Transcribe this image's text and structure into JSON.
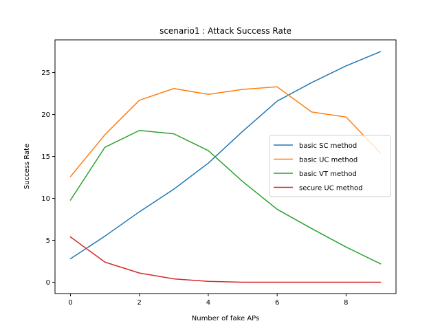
{
  "chart_data": {
    "type": "line",
    "title": "scenario1 : Attack Success Rate",
    "xlabel": "Number of fake APs",
    "ylabel": "Success Rate",
    "x": [
      0,
      1,
      2,
      3,
      4,
      5,
      6,
      7,
      8,
      9
    ],
    "xlim": [
      -0.45,
      9.45
    ],
    "ylim": [
      -1.35,
      28.9
    ],
    "xticks": [
      0,
      2,
      4,
      6,
      8
    ],
    "yticks": [
      0,
      5,
      10,
      15,
      20,
      25
    ],
    "grid": false,
    "legend_position": "center-right",
    "series": [
      {
        "name": "basic SC method",
        "color": "#1f77b4",
        "values": [
          2.8,
          5.5,
          8.4,
          11.1,
          14.2,
          18.0,
          21.6,
          23.8,
          25.8,
          27.5
        ]
      },
      {
        "name": "basic UC method",
        "color": "#ff7f0e",
        "values": [
          12.6,
          17.6,
          21.7,
          23.1,
          22.4,
          23.0,
          23.3,
          20.3,
          19.7,
          15.4
        ]
      },
      {
        "name": "basic VT method",
        "color": "#2ca02c",
        "values": [
          9.8,
          16.1,
          18.1,
          17.7,
          15.7,
          12.0,
          8.7,
          6.4,
          4.2,
          2.2
        ]
      },
      {
        "name": "secure UC method",
        "color": "#d62728",
        "values": [
          5.4,
          2.4,
          1.1,
          0.4,
          0.1,
          0.0,
          0.0,
          0.0,
          0.0,
          0.0
        ]
      }
    ]
  }
}
